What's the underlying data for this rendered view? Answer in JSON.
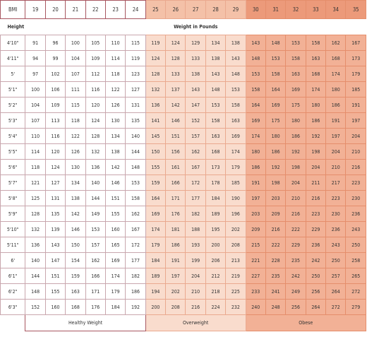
{
  "header": {
    "bmi_label": "BMI",
    "bmi_values": [
      "19",
      "20",
      "21",
      "22",
      "23",
      "24",
      "25",
      "26",
      "27",
      "28",
      "29",
      "30",
      "31",
      "32",
      "33",
      "34",
      "35"
    ]
  },
  "subheader": {
    "height_label": "Height",
    "weight_label": "Weight in Pounds"
  },
  "rows": [
    {
      "height": "4'10\"",
      "weights": [
        "91",
        "96",
        "100",
        "105",
        "110",
        "115",
        "119",
        "124",
        "129",
        "134",
        "138",
        "143",
        "148",
        "153",
        "158",
        "162",
        "167"
      ]
    },
    {
      "height": "4'11\"",
      "weights": [
        "94",
        "99",
        "104",
        "109",
        "114",
        "119",
        "124",
        "128",
        "133",
        "138",
        "143",
        "148",
        "153",
        "158",
        "163",
        "168",
        "173"
      ]
    },
    {
      "height": "5'",
      "weights": [
        "97",
        "102",
        "107",
        "112",
        "118",
        "123",
        "128",
        "133",
        "138",
        "143",
        "148",
        "153",
        "158",
        "163",
        "168",
        "174",
        "179"
      ]
    },
    {
      "height": "5'1\"",
      "weights": [
        "100",
        "106",
        "111",
        "116",
        "122",
        "127",
        "132",
        "137",
        "143",
        "148",
        "153",
        "158",
        "164",
        "169",
        "174",
        "180",
        "185"
      ]
    },
    {
      "height": "5'2\"",
      "weights": [
        "104",
        "109",
        "115",
        "120",
        "126",
        "131",
        "136",
        "142",
        "147",
        "153",
        "158",
        "164",
        "169",
        "175",
        "180",
        "186",
        "191"
      ]
    },
    {
      "height": "5'3\"",
      "weights": [
        "107",
        "113",
        "118",
        "124",
        "130",
        "135",
        "141",
        "146",
        "152",
        "158",
        "163",
        "169",
        "175",
        "180",
        "186",
        "191",
        "197"
      ]
    },
    {
      "height": "5'4\"",
      "weights": [
        "110",
        "116",
        "122",
        "128",
        "134",
        "140",
        "145",
        "151",
        "157",
        "163",
        "169",
        "174",
        "180",
        "186",
        "192",
        "197",
        "204"
      ]
    },
    {
      "height": "5'5\"",
      "weights": [
        "114",
        "120",
        "126",
        "132",
        "138",
        "144",
        "150",
        "156",
        "162",
        "168",
        "174",
        "180",
        "186",
        "192",
        "198",
        "204",
        "210"
      ]
    },
    {
      "height": "5'6\"",
      "weights": [
        "118",
        "124",
        "130",
        "136",
        "142",
        "148",
        "155",
        "161",
        "167",
        "173",
        "179",
        "186",
        "192",
        "198",
        "204",
        "210",
        "216"
      ]
    },
    {
      "height": "5'7\"",
      "weights": [
        "121",
        "127",
        "134",
        "140",
        "146",
        "153",
        "159",
        "166",
        "172",
        "178",
        "185",
        "191",
        "198",
        "204",
        "211",
        "217",
        "223"
      ]
    },
    {
      "height": "5'8\"",
      "weights": [
        "125",
        "131",
        "138",
        "144",
        "151",
        "158",
        "164",
        "171",
        "177",
        "184",
        "190",
        "197",
        "203",
        "210",
        "216",
        "223",
        "230"
      ]
    },
    {
      "height": "5'9\"",
      "weights": [
        "128",
        "135",
        "142",
        "149",
        "155",
        "162",
        "169",
        "176",
        "182",
        "189",
        "196",
        "203",
        "209",
        "216",
        "223",
        "230",
        "236"
      ]
    },
    {
      "height": "5'10\"",
      "weights": [
        "132",
        "139",
        "146",
        "153",
        "160",
        "167",
        "174",
        "181",
        "188",
        "195",
        "202",
        "209",
        "216",
        "222",
        "229",
        "236",
        "243"
      ]
    },
    {
      "height": "5'11\"",
      "weights": [
        "136",
        "143",
        "150",
        "157",
        "165",
        "172",
        "179",
        "186",
        "193",
        "200",
        "208",
        "215",
        "222",
        "229",
        "236",
        "243",
        "250"
      ]
    },
    {
      "height": "6'",
      "weights": [
        "140",
        "147",
        "154",
        "162",
        "169",
        "177",
        "184",
        "191",
        "199",
        "206",
        "213",
        "221",
        "228",
        "235",
        "242",
        "250",
        "258"
      ]
    },
    {
      "height": "6'1\"",
      "weights": [
        "144",
        "151",
        "159",
        "166",
        "174",
        "182",
        "189",
        "197",
        "204",
        "212",
        "219",
        "227",
        "235",
        "242",
        "250",
        "257",
        "265"
      ]
    },
    {
      "height": "6'2\"",
      "weights": [
        "148",
        "155",
        "163",
        "171",
        "179",
        "186",
        "194",
        "202",
        "210",
        "218",
        "225",
        "233",
        "241",
        "249",
        "256",
        "264",
        "272"
      ]
    },
    {
      "height": "6'3\"",
      "weights": [
        "152",
        "160",
        "168",
        "176",
        "184",
        "192",
        "200",
        "208",
        "216",
        "224",
        "232",
        "240",
        "248",
        "256",
        "264",
        "272",
        "279"
      ]
    }
  ],
  "footer": {
    "healthy_label": "Healthy Weight",
    "overweight_label": "Overweight",
    "obese_label": "Obese"
  },
  "colors": {
    "healthy": "#ffffff",
    "overweight": "#f9dccd",
    "obese": "#f2b196",
    "border_dark": "#a85660"
  }
}
